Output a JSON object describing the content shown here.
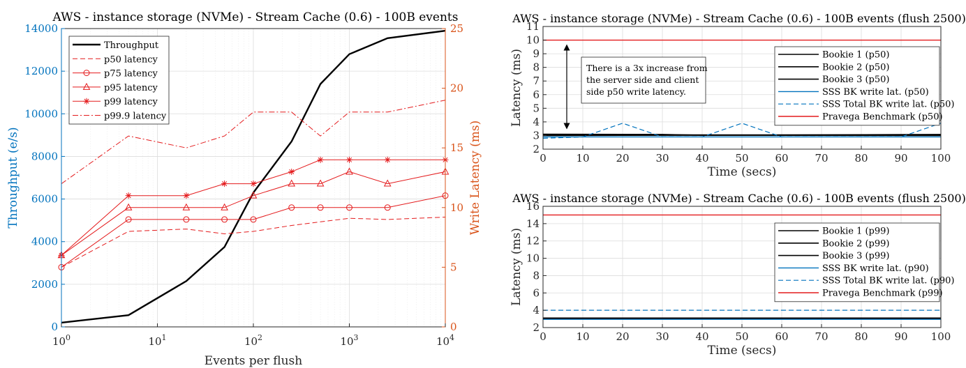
{
  "chart_data": [
    {
      "type": "line",
      "title": "AWS - instance storage (NVMe) - Stream Cache (0.6) - 100B events",
      "xlabel": "Events per flush",
      "ylabel_left": "Throughput (e/s)",
      "ylabel_right": "Write Latency (ms)",
      "x_scale": "log",
      "xlim": [
        1,
        10000
      ],
      "ylim_left": [
        0,
        14000
      ],
      "ylim_right": [
        0,
        25
      ],
      "x_ticks": [
        {
          "base": "10",
          "exp": "0"
        },
        {
          "base": "10",
          "exp": "1"
        },
        {
          "base": "10",
          "exp": "2"
        },
        {
          "base": "10",
          "exp": "3"
        },
        {
          "base": "10",
          "exp": "4"
        }
      ],
      "y_ticks_left": [
        "0",
        "2000",
        "4000",
        "6000",
        "8000",
        "10000",
        "12000",
        "14000"
      ],
      "y_ticks_right": [
        "0",
        "5",
        "10",
        "15",
        "20",
        "25"
      ],
      "grid": true,
      "legend_position": "top-left",
      "x": [
        1,
        5,
        20,
        50,
        100,
        250,
        500,
        1000,
        2500,
        10000
      ],
      "series": [
        {
          "name": "Throughput",
          "axis": "left",
          "style": "solid",
          "marker": "none",
          "color": "#000000",
          "width": 2.4,
          "values": [
            200,
            550,
            2150,
            3750,
            6300,
            8700,
            11400,
            12800,
            13550,
            13900
          ]
        },
        {
          "name": "p50 latency",
          "axis": "right",
          "style": "dashed",
          "marker": "none",
          "color": "#e41a1c",
          "width": 1,
          "values": [
            5,
            8,
            8.2,
            7.8,
            8,
            8.5,
            8.8,
            9.1,
            9,
            9.2
          ]
        },
        {
          "name": "p75 latency",
          "axis": "right",
          "style": "solid",
          "marker": "circle",
          "color": "#e41a1c",
          "width": 1,
          "values": [
            5,
            9,
            9,
            9,
            9,
            10,
            10,
            10,
            10,
            11
          ]
        },
        {
          "name": "p95 latency",
          "axis": "right",
          "style": "solid",
          "marker": "triangle",
          "color": "#e41a1c",
          "width": 1,
          "values": [
            6,
            10,
            10,
            10,
            11,
            12,
            12,
            13,
            12,
            13
          ]
        },
        {
          "name": "p99 latency",
          "axis": "right",
          "style": "solid",
          "marker": "star",
          "color": "#e41a1c",
          "width": 1,
          "values": [
            6,
            11,
            11,
            12,
            12,
            13,
            14,
            14,
            14,
            14
          ]
        },
        {
          "name": "p99.9 latency",
          "axis": "right",
          "style": "dashdot",
          "marker": "none",
          "color": "#e41a1c",
          "width": 1,
          "values": [
            12,
            16,
            15,
            16,
            18,
            18,
            16,
            18,
            18,
            19
          ]
        }
      ]
    },
    {
      "type": "line",
      "title": "AWS - instance storage (NVMe) - Stream Cache (0.6) - 100B events (flush 2500)",
      "xlabel": "Time (secs)",
      "ylabel": "Latency (ms)",
      "xlim": [
        0,
        100
      ],
      "ylim": [
        2,
        11
      ],
      "x_ticks": [
        "0",
        "10",
        "20",
        "30",
        "40",
        "50",
        "60",
        "70",
        "80",
        "90",
        "100"
      ],
      "y_ticks": [
        "2",
        "3",
        "4",
        "5",
        "6",
        "7",
        "8",
        "9",
        "10",
        "11"
      ],
      "grid": true,
      "legend_position": "top-right",
      "annotation": {
        "lines": [
          "There is a 3x increase from",
          "the server side and client",
          "side p50 write latency."
        ]
      },
      "series": [
        {
          "name": "Bookie 1 (p50)",
          "style": "solid",
          "color": "#000000",
          "width": 1.6,
          "x": [
            0,
            100
          ],
          "values": [
            3.05,
            3.05
          ]
        },
        {
          "name": "Bookie 2 (p50)",
          "style": "solid",
          "color": "#000000",
          "width": 1.6,
          "x": [
            0,
            40,
            100
          ],
          "values": [
            3,
            3.02,
            3.0
          ]
        },
        {
          "name": "Bookie 3 (p50)",
          "style": "solid",
          "color": "#000000",
          "width": 1.6,
          "x": [
            0,
            30,
            40,
            100
          ],
          "values": [
            3.1,
            3.08,
            3.02,
            3.08
          ]
        },
        {
          "name": "SSS BK write lat. (p50)",
          "style": "solid",
          "color": "#0072bd",
          "width": 1.4,
          "x": [
            0,
            100
          ],
          "values": [
            2.9,
            2.9
          ]
        },
        {
          "name": "SSS Total BK write lat. (p50)",
          "style": "dashed",
          "color": "#0072bd",
          "width": 1.2,
          "x": [
            0,
            10,
            20,
            30,
            40,
            50,
            60,
            70,
            80,
            90,
            100
          ],
          "values": [
            2.8,
            2.9,
            3.9,
            2.9,
            2.9,
            3.9,
            2.9,
            2.9,
            2.9,
            2.9,
            3.9
          ]
        },
        {
          "name": "Pravega Benchmark (p50)",
          "style": "solid",
          "color": "#e41a1c",
          "width": 1.4,
          "x": [
            0,
            100
          ],
          "values": [
            10,
            10
          ]
        }
      ]
    },
    {
      "type": "line",
      "title": "AWS - instance storage (NVMe) - Stream Cache (0.6) - 100B events (flush 2500)",
      "xlabel": "Time (secs)",
      "ylabel": "Latency (ms)",
      "xlim": [
        0,
        100
      ],
      "ylim": [
        2,
        16
      ],
      "x_ticks": [
        "0",
        "10",
        "20",
        "30",
        "40",
        "50",
        "60",
        "70",
        "80",
        "90",
        "100"
      ],
      "y_ticks": [
        "2",
        "4",
        "6",
        "8",
        "10",
        "12",
        "14",
        "16"
      ],
      "grid": true,
      "legend_position": "top-right",
      "series": [
        {
          "name": "Bookie 1 (p99)",
          "style": "solid",
          "color": "#000000",
          "width": 1.6,
          "x": [
            0,
            20,
            30,
            50,
            100
          ],
          "values": [
            3.0,
            3.1,
            3.1,
            3.0,
            3.0
          ]
        },
        {
          "name": "Bookie 2 (p99)",
          "style": "solid",
          "color": "#000000",
          "width": 1.6,
          "x": [
            0,
            100
          ],
          "values": [
            3.1,
            3.1
          ]
        },
        {
          "name": "Bookie 3 (p99)",
          "style": "solid",
          "color": "#000000",
          "width": 1.6,
          "x": [
            0,
            100
          ],
          "values": [
            3.0,
            3.0
          ]
        },
        {
          "name": "SSS BK write lat. (p90)",
          "style": "solid",
          "color": "#0072bd",
          "width": 1.4,
          "x": [
            0,
            100
          ],
          "values": [
            2.95,
            2.95
          ]
        },
        {
          "name": "SSS Total BK write lat. (p90)",
          "style": "dashed",
          "color": "#0072bd",
          "width": 1.2,
          "x": [
            0,
            100
          ],
          "values": [
            4,
            4
          ]
        },
        {
          "name": "Pravega Benchmark (p99)",
          "style": "solid",
          "color": "#e41a1c",
          "width": 1.4,
          "x": [
            0,
            100
          ],
          "values": [
            15,
            15
          ]
        }
      ]
    }
  ]
}
